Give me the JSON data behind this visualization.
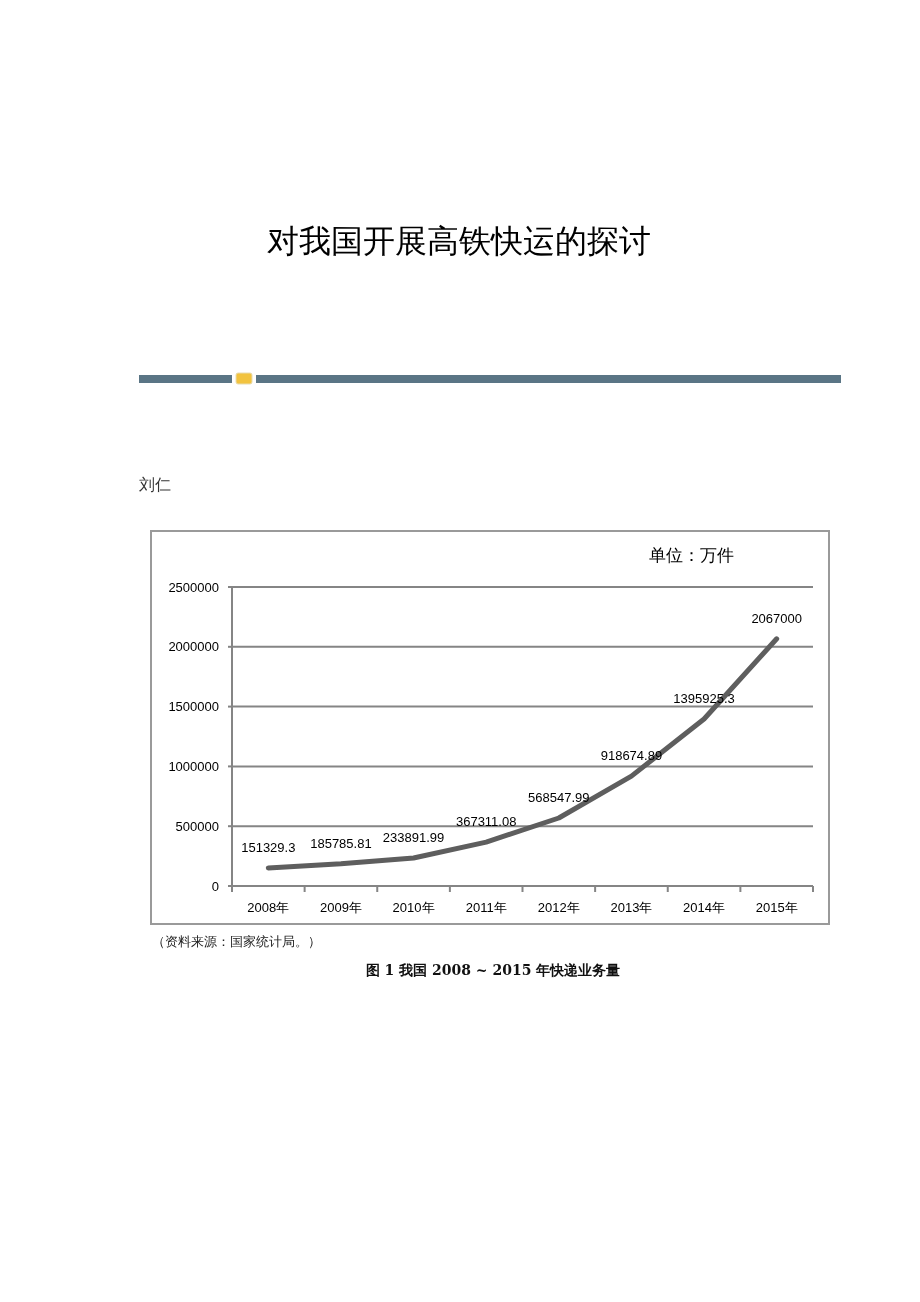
{
  "chart_data": {
    "type": "line",
    "title": "对我国开展高铁快运的探讨",
    "ylabel": "单位：万件",
    "annotations": [
      "刘仁",
      "（资料来源：国家统计局。）",
      "图 1 我国 2008 ~ 2015 年快递业务量"
    ],
    "categories": [
      "2008年",
      "2009年",
      "2010年",
      "2011年",
      "2012年",
      "2013年",
      "2014年",
      "2015年"
    ],
    "values": [
      151329.3,
      185785.81,
      233891.99,
      367311.08,
      568547.99,
      918674.89,
      1395925.3,
      2067000
    ],
    "color": "#5e5e5e",
    "ylim": [
      0,
      2500000
    ],
    "yticks": [
      0,
      500000,
      1000000,
      1500000,
      2000000,
      2500000
    ],
    "grid": "y",
    "data_labels": true
  }
}
